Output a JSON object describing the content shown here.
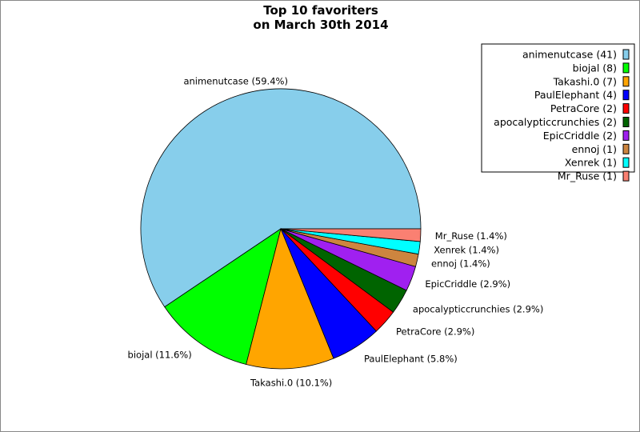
{
  "chart_data": {
    "type": "pie",
    "title": [
      "Top 10 favoriters",
      "on March 30th 2014"
    ],
    "legend_position": "top-right",
    "slices": [
      {
        "label": "animenutcase",
        "value": 41,
        "percent": "59.4%",
        "color": "#87CEEB"
      },
      {
        "label": "biojal",
        "value": 8,
        "percent": "11.6%",
        "color": "#00FF00"
      },
      {
        "label": "Takashi.0",
        "value": 7,
        "percent": "10.1%",
        "color": "#FFA500"
      },
      {
        "label": "PaulElephant",
        "value": 4,
        "percent": "5.8%",
        "color": "#0000FF"
      },
      {
        "label": "PetraCore",
        "value": 2,
        "percent": "2.9%",
        "color": "#FF0000"
      },
      {
        "label": "apocalypticcrunchies",
        "value": 2,
        "percent": "2.9%",
        "color": "#006400"
      },
      {
        "label": "EpicCriddle",
        "value": 2,
        "percent": "2.9%",
        "color": "#A020F0"
      },
      {
        "label": "ennoj",
        "value": 1,
        "percent": "1.4%",
        "color": "#CD853F"
      },
      {
        "label": "Xenrek",
        "value": 1,
        "percent": "1.4%",
        "color": "#00FFFF"
      },
      {
        "label": "Mr_Ruse",
        "value": 1,
        "percent": "1.4%",
        "color": "#FA8072"
      }
    ],
    "start_angle": "3 o'clock",
    "direction": "counterclockwise"
  }
}
